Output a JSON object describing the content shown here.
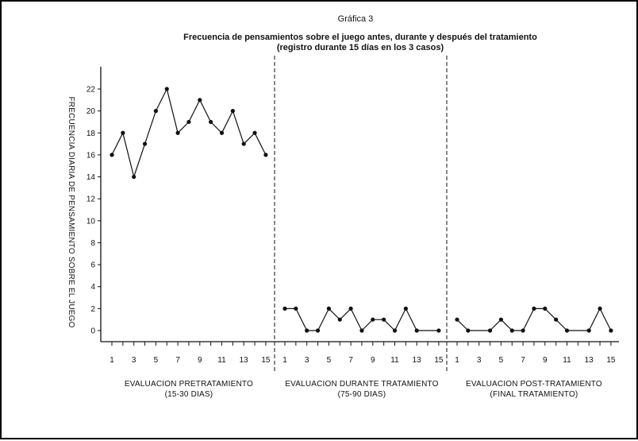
{
  "chart_data": {
    "type": "line",
    "caption": "Gráfica 3",
    "title": "Frecuencia de pensamientos sobre el juego antes, durante y después del tratamiento",
    "subtitle": "(registro durante 15 días en los 3 casos)",
    "ylabel": "FRECUENCIA DIARIA DE PENSAMIENTO SOBRE EL JUEGO",
    "ylim": [
      0,
      22
    ],
    "yticks": [
      0,
      2,
      4,
      6,
      8,
      10,
      12,
      14,
      16,
      18,
      20,
      22
    ],
    "xtick_labels": [
      "1",
      "3",
      "5",
      "7",
      "9",
      "11",
      "13",
      "15"
    ],
    "grid": false,
    "legend": "none",
    "panels": [
      {
        "label_line1": "EVALUACION PRETRATAMIENTO",
        "label_line2": "(15-30 DIAS)",
        "x": [
          1,
          2,
          3,
          4,
          5,
          6,
          7,
          8,
          9,
          10,
          11,
          12,
          13,
          14,
          15
        ],
        "values": [
          16,
          18,
          14,
          17,
          20,
          22,
          18,
          19,
          21,
          19,
          18,
          20,
          17,
          18,
          16
        ]
      },
      {
        "label_line1": "EVALUACION DURANTE TRATAMIENTO",
        "label_line2": "(75-90 DIAS)",
        "x": [
          1,
          2,
          3,
          4,
          5,
          6,
          7,
          8,
          9,
          10,
          11,
          12,
          13,
          15
        ],
        "values": [
          2,
          2,
          0,
          0,
          2,
          1,
          2,
          0,
          1,
          1,
          0,
          2,
          0,
          0
        ]
      },
      {
        "label_line1": "EVALUACION POST-TRATAMIENTO",
        "label_line2": "(FINAL TRATAMIENTO)",
        "x": [
          1,
          2,
          4,
          5,
          6,
          7,
          8,
          9,
          10,
          11,
          13,
          14,
          15
        ],
        "values": [
          1,
          0,
          0,
          1,
          0,
          0,
          2,
          2,
          1,
          0,
          0,
          2,
          0
        ]
      }
    ]
  }
}
